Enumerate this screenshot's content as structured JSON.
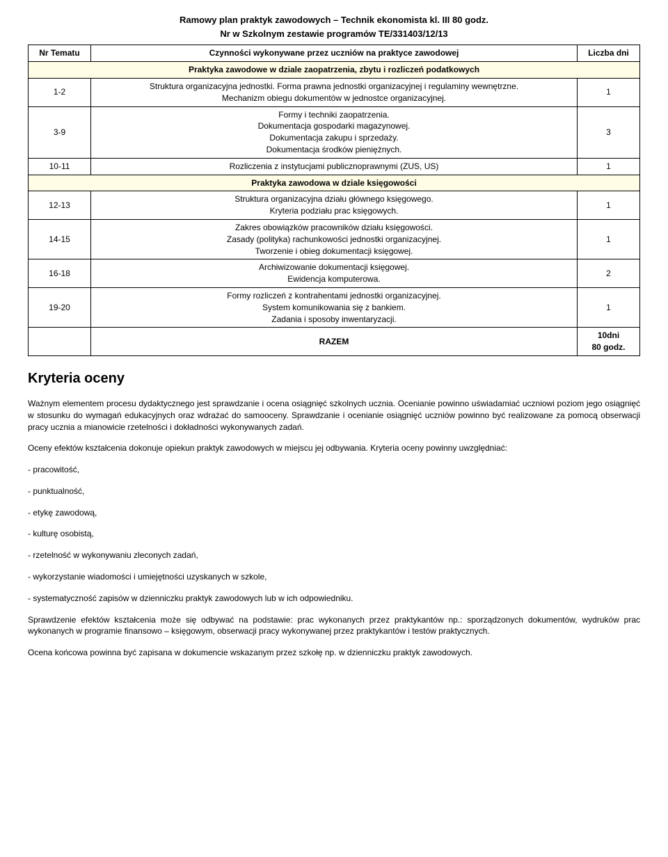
{
  "title": "Ramowy plan praktyk zawodowych – Technik ekonomista kl. III 80 godz.",
  "subtitle": "Nr w Szkolnym zestawie programów TE/331403/12/13",
  "table": {
    "headers": {
      "col1": "Nr Tematu",
      "col2": "Czynności  wykonywane przez uczniów na praktyce zawodowej",
      "col3": "Liczba  dni"
    },
    "section1": "Praktyka zawodowe w dziale zaopatrzenia, zbytu i rozliczeń podatkowych",
    "rows1": [
      {
        "num": "1-2",
        "lines": [
          "Struktura organizacyjna jednostki. Forma prawna jednostki organizacyjnej i regulaminy wewnętrzne.",
          "Mechanizm obiegu dokumentów w jednostce organizacyjnej."
        ],
        "days": "1"
      },
      {
        "num": "3-9",
        "lines": [
          "Formy i techniki zaopatrzenia.",
          "Dokumentacja gospodarki magazynowej.",
          "Dokumentacja zakupu i sprzedaży.",
          "Dokumentacja środków pieniężnych."
        ],
        "days": "3"
      },
      {
        "num": "10-11",
        "lines": [
          "Rozliczenia z instytucjami publicznoprawnymi (ZUS, US)"
        ],
        "days": "1"
      }
    ],
    "section2": "Praktyka zawodowa w dziale księgowości",
    "rows2": [
      {
        "num": "12-13",
        "lines": [
          "Struktura organizacyjna działu głównego księgowego.",
          "Kryteria podziału prac księgowych."
        ],
        "days": "1"
      },
      {
        "num": "14-15",
        "lines": [
          "Zakres obowiązków pracowników działu księgowości.",
          "Zasady (polityka) rachunkowości jednostki organizacyjnej.",
          "Tworzenie  i  obieg  dokumentacji  księgowej."
        ],
        "days": "1"
      },
      {
        "num": "16-18",
        "lines": [
          "Archiwizowanie dokumentacji księgowej.",
          "Ewidencja komputerowa."
        ],
        "days": "2"
      },
      {
        "num": "19-20",
        "lines": [
          "Formy rozliczeń z kontrahentami jednostki organizacyjnej.",
          "System komunikowania się z bankiem.",
          "Zadania i sposoby inwentaryzacji."
        ],
        "days": "1"
      }
    ],
    "razem_label": "RAZEM",
    "razem_value_line1": "10dni",
    "razem_value_line2": "80 godz."
  },
  "criteria_heading": "Kryteria oceny",
  "para1": "Ważnym elementem procesu dydaktycznego jest sprawdzanie i ocena osiągnięć szkolnych ucznia. Ocenianie powinno uświadamiać uczniowi poziom jego osiągnięć w stosunku do wymagań edukacyjnych oraz wdrażać do samooceny. Sprawdzanie i ocenianie osiągnięć uczniów powinno być realizowane za pomocą obserwacji pracy ucznia a mianowicie rzetelności i dokładności wykonywanych zadań.",
  "para2": "Oceny efektów kształcenia dokonuje opiekun praktyk zawodowych w miejscu jej odbywania. Kryteria oceny powinny uwzględniać:",
  "bullets": [
    "- pracowitość,",
    "- punktualność,",
    "- etykę zawodową,",
    "- kulturę osobistą,",
    "- rzetelność w wykonywaniu zleconych zadań,",
    "- wykorzystanie wiadomości i umiejętności uzyskanych w szkole,",
    "- systematyczność zapisów w dzienniczku praktyk zawodowych lub w ich odpowiedniku."
  ],
  "para3": "Sprawdzenie efektów kształcenia może się odbywać na podstawie: prac wykonanych przez praktykantów np.: sporządzonych dokumentów, wydruków prac wykonanych w programie finansowo – księgowym, obserwacji pracy wykonywanej przez praktykantów i testów praktycznych.",
  "para4": "Ocena końcowa powinna być zapisana w dokumencie wskazanym przez szkołę np. w dzienniczku praktyk zawodowych."
}
